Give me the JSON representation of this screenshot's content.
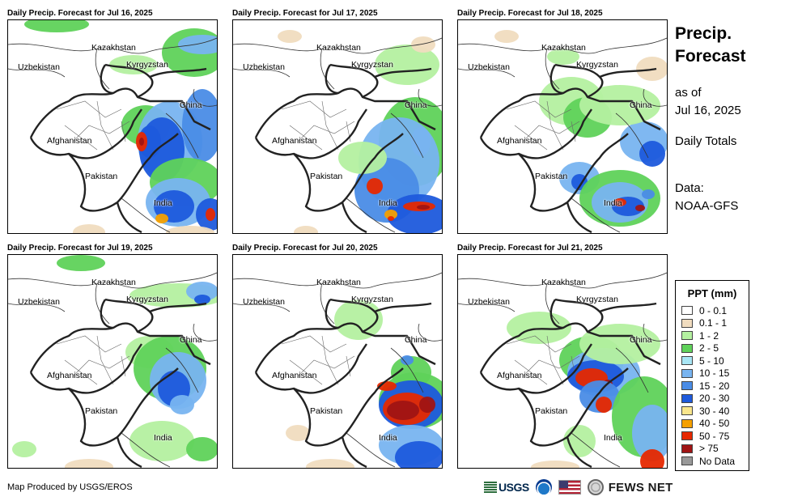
{
  "panels": [
    {
      "title": "Daily Precip. Forecast for Jul 16, 2025"
    },
    {
      "title": "Daily Precip. Forecast for Jul 17, 2025"
    },
    {
      "title": "Daily Precip. Forecast for Jul 18, 2025"
    },
    {
      "title": "Daily Precip. Forecast for Jul 19, 2025"
    },
    {
      "title": "Daily Precip. Forecast for Jul 20, 2025"
    },
    {
      "title": "Daily Precip. Forecast for Jul 21, 2025"
    }
  ],
  "map_labels": {
    "kazakhstan": "Kazakhstan",
    "uzbekistan": "Uzbekistan",
    "kyrgyzstan": "Kyrgyzstan",
    "china": "China",
    "afghanistan": "Afghanistan",
    "pakistan": "Pakistan",
    "india": "India"
  },
  "side_info": {
    "title_line1": "Precip.",
    "title_line2": "Forecast",
    "asof_line1": "as of",
    "asof_line2": "Jul 16, 2025",
    "totals": "Daily Totals",
    "data_line1": "Data:",
    "data_line2": "NOAA-GFS"
  },
  "legend": {
    "title": "PPT (mm)",
    "items": [
      {
        "label": "0 - 0.1",
        "color": "#ffffff"
      },
      {
        "label": "0.1 - 1",
        "color": "#f0dcbf"
      },
      {
        "label": "1 - 2",
        "color": "#b4f0a0"
      },
      {
        "label": "2 - 5",
        "color": "#5fd25a"
      },
      {
        "label": "5 - 10",
        "color": "#a8e6f5"
      },
      {
        "label": "10 - 15",
        "color": "#78b4f0"
      },
      {
        "label": "15 - 20",
        "color": "#4a8ce6"
      },
      {
        "label": "20 - 30",
        "color": "#1e5adc"
      },
      {
        "label": "30 - 40",
        "color": "#fae68c"
      },
      {
        "label": "40 - 50",
        "color": "#f5a000"
      },
      {
        "label": "50 - 75",
        "color": "#e62800"
      },
      {
        "label": "> 75",
        "color": "#a01414"
      },
      {
        "label": "No Data",
        "color": "#999999"
      }
    ]
  },
  "footer": {
    "credit": "Map Produced by USGS/EROS",
    "usgs": "USGS",
    "fews": "FEWS NET"
  }
}
